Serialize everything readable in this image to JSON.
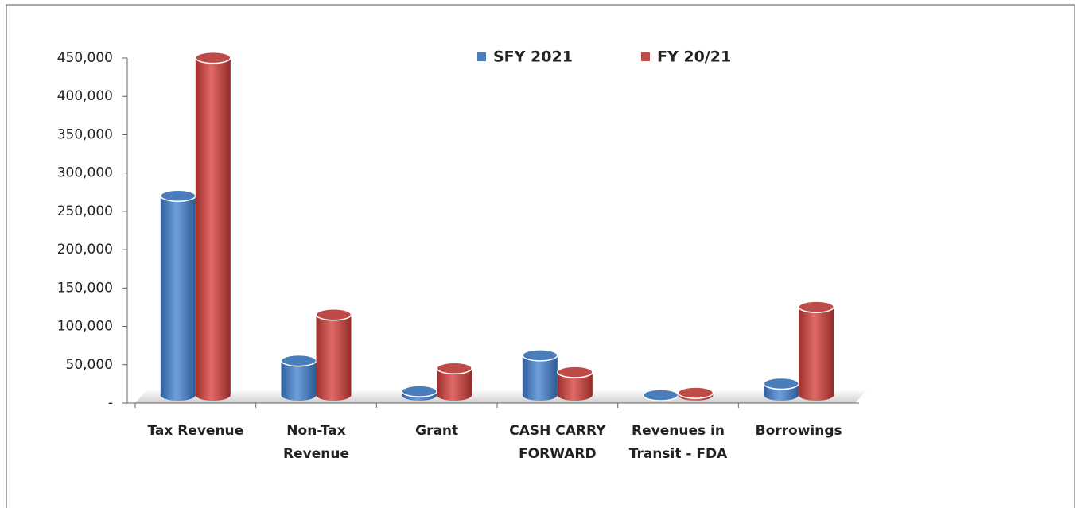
{
  "chart_data": {
    "type": "bar3d",
    "categories": [
      "Tax Revenue",
      "Non-Tax Revenue",
      "Grant",
      "CASH CARRY FORWARD",
      "Revenues in Transit - FDA",
      "Borrowings"
    ],
    "series": [
      {
        "name": "SFY 2021",
        "color": "#4a7ebb",
        "values": [
          260000,
          45000,
          5000,
          52000,
          0,
          15000
        ]
      },
      {
        "name": "FY 20/21",
        "color": "#be4b48",
        "values": [
          440000,
          105000,
          35000,
          30000,
          3000,
          115000
        ]
      }
    ],
    "ylim": [
      0,
      450000
    ],
    "yticks": [
      {
        "value": 0,
        "label": "-"
      },
      {
        "value": 50000,
        "label": "50,000"
      },
      {
        "value": 100000,
        "label": "100,000"
      },
      {
        "value": 150000,
        "label": "150,000"
      },
      {
        "value": 200000,
        "label": "200,000"
      },
      {
        "value": 250000,
        "label": "250,000"
      },
      {
        "value": 300000,
        "label": "300,000"
      },
      {
        "value": 350000,
        "label": "350,000"
      },
      {
        "value": 400000,
        "label": "400,000"
      },
      {
        "value": 450000,
        "label": "450,000"
      }
    ],
    "legend": "top"
  }
}
